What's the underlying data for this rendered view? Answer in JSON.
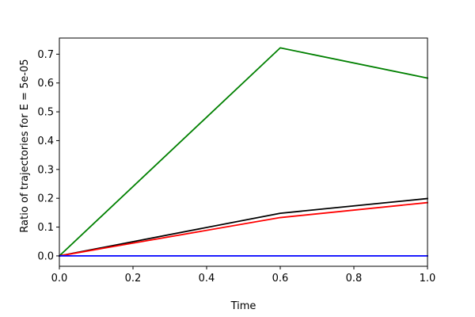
{
  "chart_data": {
    "type": "line",
    "title": "",
    "xlabel": "Time",
    "ylabel": "Ratio of trajectories for E = 5e-05",
    "xlim": [
      0.0,
      1.0
    ],
    "ylim": [
      -0.036,
      0.756
    ],
    "xticks": [
      0.0,
      0.2,
      0.4,
      0.6,
      0.8,
      1.0
    ],
    "xtick_labels": [
      "0.0",
      "0.2",
      "0.4",
      "0.6",
      "0.8",
      "1.0"
    ],
    "yticks": [
      0.0,
      0.1,
      0.2,
      0.3,
      0.4,
      0.5,
      0.6,
      0.7
    ],
    "ytick_labels": [
      "0.0",
      "0.1",
      "0.2",
      "0.3",
      "0.4",
      "0.5",
      "0.6",
      "0.7"
    ],
    "grid": false,
    "legend": "none",
    "x": [
      0.0,
      0.6,
      1.0
    ],
    "series": [
      {
        "color": "#008000",
        "values": [
          0.0,
          0.722,
          0.617
        ]
      },
      {
        "color": "#000000",
        "values": [
          0.0,
          0.148,
          0.199
        ]
      },
      {
        "color": "#ff0000",
        "values": [
          0.0,
          0.133,
          0.185
        ]
      },
      {
        "color": "#0000ff",
        "values": [
          0.0,
          0.0,
          0.0
        ]
      }
    ]
  }
}
